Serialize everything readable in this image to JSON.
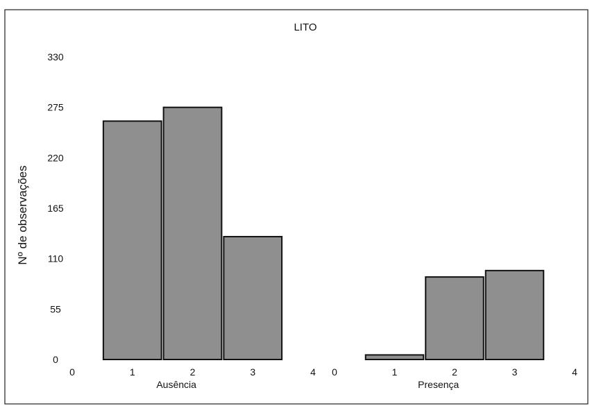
{
  "chart_data": {
    "type": "bar",
    "title": "LITO",
    "ylabel": "Nº de observações",
    "ylim": [
      0,
      330
    ],
    "yticks": [
      0,
      55,
      110,
      165,
      220,
      275,
      330
    ],
    "grid": false,
    "panels": [
      {
        "name": "Ausência",
        "xlim": [
          0,
          4
        ],
        "xticks": [
          0,
          1,
          2,
          3,
          4
        ],
        "categories": [
          1,
          2,
          3
        ],
        "values": [
          260,
          275,
          134
        ]
      },
      {
        "name": "Presença",
        "xlim": [
          0,
          4
        ],
        "xticks": [
          0,
          1,
          2,
          3,
          4
        ],
        "categories": [
          1,
          2,
          3
        ],
        "values": [
          5,
          90,
          97
        ]
      }
    ]
  }
}
